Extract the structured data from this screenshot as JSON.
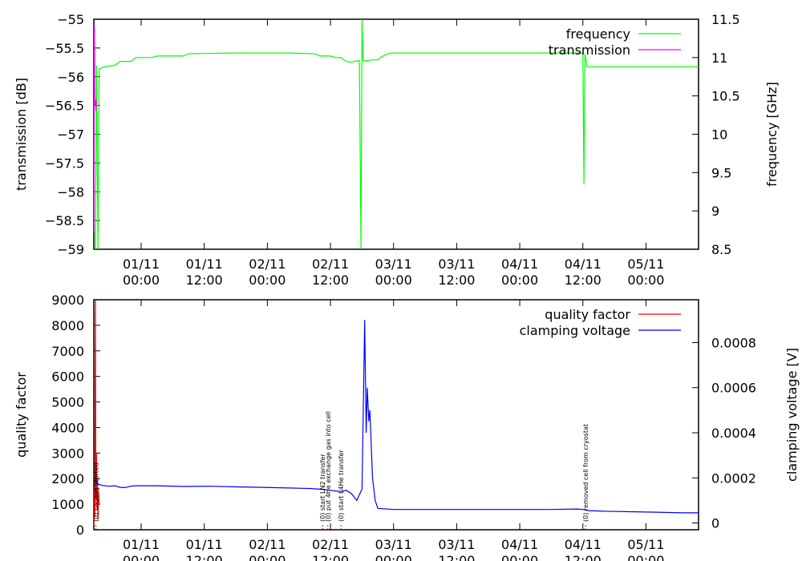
{
  "chart_data": [
    {
      "type": "line",
      "ylabel": "transmission [dB]",
      "y2label": "frequency [GHz]",
      "x_ticks": [
        {
          "h": 12,
          "date": "01/11",
          "time": "00:00"
        },
        {
          "h": 24,
          "date": "01/11",
          "time": "12:00"
        },
        {
          "h": 36,
          "date": "02/11",
          "time": "00:00"
        },
        {
          "h": 48,
          "date": "02/11",
          "time": "12:00"
        },
        {
          "h": 60,
          "date": "03/11",
          "time": "00:00"
        },
        {
          "h": 72,
          "date": "03/11",
          "time": "12:00"
        },
        {
          "h": 84,
          "date": "04/11",
          "time": "00:00"
        },
        {
          "h": 96,
          "date": "04/11",
          "time": "12:00"
        },
        {
          "h": 108,
          "date": "05/11",
          "time": "00:00"
        }
      ],
      "xlim": [
        3,
        118
      ],
      "ylim": [
        -59,
        -55
      ],
      "y_ticks": [
        -55,
        -55.5,
        -56,
        -56.5,
        -57,
        -57.5,
        -58,
        -58.5,
        -59
      ],
      "y2lim": [
        8.5,
        11.5
      ],
      "y2_ticks": [
        11.5,
        11,
        10.5,
        10,
        9.5,
        9,
        8.5
      ],
      "legend_position": "top-right",
      "grid": false,
      "series": [
        {
          "name": "frequency",
          "color": "#00ff00",
          "axis": "y2",
          "points": [
            [
              3.3,
              8.5
            ],
            [
              3.5,
              10.9
            ],
            [
              3.8,
              8.5
            ],
            [
              4.0,
              10.85
            ],
            [
              5,
              10.88
            ],
            [
              7,
              10.9
            ],
            [
              8,
              10.95
            ],
            [
              10,
              10.95
            ],
            [
              11,
              11.0
            ],
            [
              14,
              11.0
            ],
            [
              15,
              11.02
            ],
            [
              20,
              11.02
            ],
            [
              21,
              11.05
            ],
            [
              30,
              11.06
            ],
            [
              40,
              11.06
            ],
            [
              45,
              11.05
            ],
            [
              46,
              11.02
            ],
            [
              48,
              11.02
            ],
            [
              49,
              11.0
            ],
            [
              50,
              11.0
            ],
            [
              51,
              10.95
            ],
            [
              52,
              10.94
            ],
            [
              53,
              10.96
            ],
            [
              53.5,
              10.96
            ],
            [
              53.8,
              8.5
            ],
            [
              54.0,
              11.5
            ],
            [
              54.2,
              10.96
            ],
            [
              55,
              10.96
            ],
            [
              56,
              10.97
            ],
            [
              57,
              10.97
            ],
            [
              57.5,
              11.0
            ],
            [
              58,
              11.02
            ],
            [
              59,
              11.05
            ],
            [
              60,
              11.06
            ],
            [
              70,
              11.06
            ],
            [
              80,
              11.06
            ],
            [
              90,
              11.06
            ],
            [
              95.5,
              11.06
            ],
            [
              96,
              11.05
            ],
            [
              96.2,
              9.35
            ],
            [
              96.4,
              11.05
            ],
            [
              96.8,
              10.88
            ],
            [
              100,
              10.88
            ],
            [
              110,
              10.88
            ],
            [
              118,
              10.88
            ]
          ]
        },
        {
          "name": "transmission",
          "color": "#ff00ff",
          "axis": "y",
          "points": [
            [
              3.0,
              -58.7
            ],
            [
              3.1,
              -55.1
            ],
            [
              3.2,
              -56.5
            ],
            [
              3.3,
              -56.4
            ],
            [
              3.4,
              -56.6
            ],
            [
              3.5,
              -56.4
            ]
          ]
        }
      ]
    },
    {
      "type": "line",
      "ylabel": "quality factor",
      "y2label": "clamping voltage [V]",
      "x_ticks": [
        {
          "h": 12,
          "date": "01/11",
          "time": "00:00"
        },
        {
          "h": 24,
          "date": "01/11",
          "time": "12:00"
        },
        {
          "h": 36,
          "date": "02/11",
          "time": "00:00"
        },
        {
          "h": 48,
          "date": "02/11",
          "time": "12:00"
        },
        {
          "h": 60,
          "date": "03/11",
          "time": "00:00"
        },
        {
          "h": 72,
          "date": "03/11",
          "time": "12:00"
        },
        {
          "h": 84,
          "date": "04/11",
          "time": "00:00"
        },
        {
          "h": 96,
          "date": "04/11",
          "time": "12:00"
        },
        {
          "h": 108,
          "date": "05/11",
          "time": "00:00"
        }
      ],
      "xlim": [
        3,
        118
      ],
      "ylim": [
        0,
        9000
      ],
      "y_ticks": [
        0,
        1000,
        2000,
        3000,
        4000,
        5000,
        6000,
        7000,
        8000,
        9000
      ],
      "y2lim": [
        -3e-05,
        0.00099
      ],
      "y2_ticks": [
        0,
        0.0002,
        0.0004,
        0.0006,
        0.0008
      ],
      "y2_tick_labels": [
        "0",
        "0.0002",
        "0.0004",
        "0.0006",
        "0.0008"
      ],
      "legend_position": "top-right",
      "grid": false,
      "series": [
        {
          "name": "quality factor",
          "color": "#ff0000",
          "axis": "y",
          "points": [
            [
              3.0,
              200
            ],
            [
              3.1,
              1500
            ],
            [
              3.2,
              500
            ],
            [
              3.3,
              9000
            ],
            [
              3.4,
              1200
            ],
            [
              3.5,
              3000
            ],
            [
              3.6,
              800
            ],
            [
              3.7,
              2000
            ],
            [
              3.8,
              400
            ],
            [
              3.9,
              1500
            ],
            [
              4.0,
              1000
            ]
          ]
        },
        {
          "name": "clamping voltage",
          "color": "#0000ff",
          "axis": "y2",
          "points": [
            [
              3.3,
              0.0002
            ],
            [
              3.5,
              0.00018
            ],
            [
              4.0,
              0.00017
            ],
            [
              5,
              0.000165
            ],
            [
              6,
              0.000163
            ],
            [
              7,
              0.000165
            ],
            [
              8,
              0.000158
            ],
            [
              9,
              0.000157
            ],
            [
              10,
              0.000163
            ],
            [
              11,
              0.000165
            ],
            [
              15,
              0.000165
            ],
            [
              20,
              0.000162
            ],
            [
              25,
              0.000163
            ],
            [
              30,
              0.00016
            ],
            [
              35,
              0.000158
            ],
            [
              40,
              0.000155
            ],
            [
              44,
              0.000153
            ],
            [
              46,
              0.00015
            ],
            [
              48,
              0.000145
            ],
            [
              49,
              0.000142
            ],
            [
              50,
              0.00014
            ],
            [
              51,
              0.000145
            ],
            [
              52,
              0.00013
            ],
            [
              53,
              0.0001
            ],
            [
              54,
              0.00015
            ],
            [
              54.5,
              0.0009
            ],
            [
              54.8,
              0.0004
            ],
            [
              55,
              0.0006
            ],
            [
              55.3,
              0.00045
            ],
            [
              55.5,
              0.0005
            ],
            [
              56,
              0.0002
            ],
            [
              56.5,
              0.0001
            ],
            [
              57,
              6.5e-05
            ],
            [
              60,
              6e-05
            ],
            [
              70,
              6e-05
            ],
            [
              80,
              6e-05
            ],
            [
              90,
              6e-05
            ],
            [
              95,
              6.2e-05
            ],
            [
              96,
              6e-05
            ],
            [
              97,
              5.5e-05
            ],
            [
              100,
              5.2e-05
            ],
            [
              105,
              5e-05
            ],
            [
              110,
              4.8e-05
            ],
            [
              115,
              4.5e-05
            ],
            [
              118,
              4.5e-05
            ]
          ]
        }
      ],
      "annotations": [
        {
          "h": 3.4,
          "text": "(0) cooling started"
        },
        {
          "h": 46.5,
          "text": "(0) start LN2 transfer"
        },
        {
          "h": 47.5,
          "text": "(0) put 4He exchange gas into cell"
        },
        {
          "h": 50.0,
          "text": "(0) start L4He transfer"
        },
        {
          "h": 96.5,
          "text": "(0) removed cell from cryostat"
        }
      ]
    }
  ]
}
